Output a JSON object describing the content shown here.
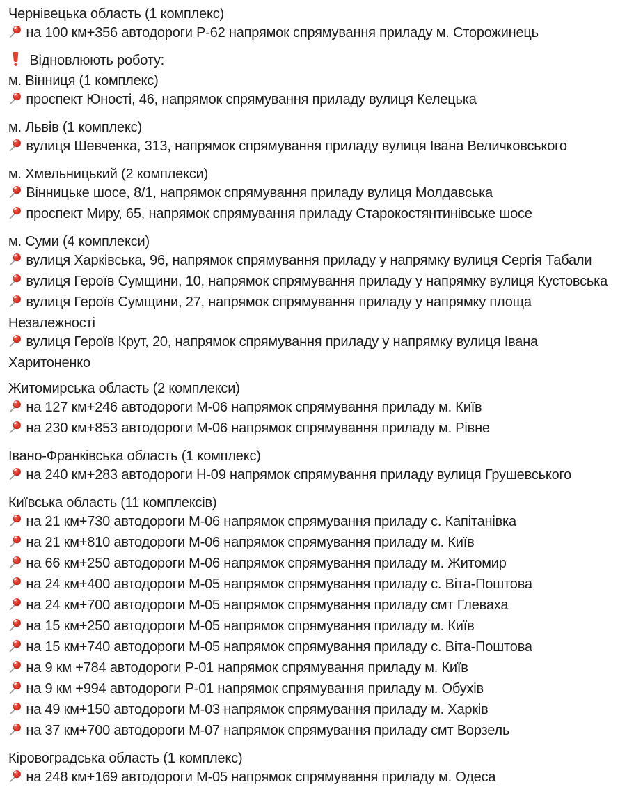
{
  "page": {
    "background": "#ffffff",
    "text_color": "#1f1f1f",
    "alert_red": "#e8402f",
    "pin_ball_red": "#d6332a",
    "pin_needle_gray": "#9e9e9e"
  },
  "icons": {
    "pin_glyph": "📌",
    "alert_glyph": "❗"
  },
  "blocks": [
    {
      "lines": [
        {
          "type": "heading",
          "text": "Чернівецька область (1 комплекс)"
        },
        {
          "type": "pin",
          "text": "на 100 км+356 автодороги Р-62 напрямок спрямування приладу м. Сторожинець"
        }
      ]
    },
    {
      "lines": [
        {
          "type": "alert",
          "text": "Відновлюють роботу:"
        },
        {
          "type": "heading",
          "text": "м. Вінниця (1 комплекс)"
        },
        {
          "type": "pin",
          "text": "проспект Юності, 46, напрямок спрямування приладу вулиця Келецька"
        }
      ]
    },
    {
      "lines": [
        {
          "type": "heading",
          "text": "м. Львів (1 комплекс)"
        },
        {
          "type": "pin",
          "text": "вулиця Шевченка, 313, напрямок спрямування приладу вулиця Івана Величковського"
        }
      ]
    },
    {
      "lines": [
        {
          "type": "heading",
          "text": "м. Хмельницький (2 комплекси)"
        },
        {
          "type": "pin",
          "text": "Вінницьке шосе, 8/1, напрямок спрямування приладу вулиця Молдавська"
        },
        {
          "type": "pin",
          "text": "проспект Миру, 65, напрямок спрямування приладу Старокостянтинівське шосе"
        }
      ]
    },
    {
      "lines": [
        {
          "type": "heading",
          "text": "м. Суми (4 комплекси)"
        },
        {
          "type": "pin",
          "text": "вулиця Харківська, 96, напрямок спрямування приладу у напрямку вулиця Сергія Табали"
        },
        {
          "type": "pin",
          "text": "вулиця Героїв Сумщини, 10, напрямок спрямування приладу у напрямку вулиця Кустовська"
        },
        {
          "type": "pin",
          "text": "вулиця Героїв Сумщини, 27, напрямок спрямування приладу у напрямку площа Незалежності"
        },
        {
          "type": "pin",
          "text": "вулиця Героїв Крут, 20, напрямок спрямування приладу у напрямку вулиця Івана Харитоненко"
        }
      ]
    },
    {
      "lines": [
        {
          "type": "heading",
          "text": "Житомирська область (2 комплекси)"
        },
        {
          "type": "pin",
          "text": "на 127 км+246 автодороги М-06 напрямок спрямування приладу м. Київ"
        },
        {
          "type": "pin",
          "text": "на 230 км+853 автодороги М-06 напрямок спрямування приладу м. Рівне"
        }
      ]
    },
    {
      "lines": [
        {
          "type": "heading",
          "text": "Івано-Франківська область (1 комплекс)"
        },
        {
          "type": "pin",
          "text": "на 240 км+283 автодороги Н-09 напрямок спрямування приладу вулиця Грушевського"
        }
      ]
    },
    {
      "lines": [
        {
          "type": "heading",
          "text": "Київська область (11 комплексів)"
        },
        {
          "type": "pin",
          "text": "на 21 км+730 автодороги М-06 напрямок спрямування приладу с. Капітанівка"
        },
        {
          "type": "pin",
          "text": "на 21 км+810 автодороги М-06 напрямок спрямування приладу м. Київ"
        },
        {
          "type": "pin",
          "text": "на 66 км+250 автодороги М-06 напрямок спрямування приладу м. Житомир"
        },
        {
          "type": "pin",
          "text": "на 24 км+400 автодороги М-05 напрямок спрямування приладу с. Віта-Поштова"
        },
        {
          "type": "pin",
          "text": "на 24 км+700 автодороги М-05 напрямок спрямування приладу смт Глеваха"
        },
        {
          "type": "pin",
          "text": "на 15 км+250 автодороги М-05 напрямок спрямування приладу м. Київ"
        },
        {
          "type": "pin",
          "text": "на 15 км+740 автодороги М-05 напрямок спрямування приладу с. Віта-Поштова"
        },
        {
          "type": "pin",
          "text": "на 9 км +784 автодороги Р-01 напрямок спрямування приладу м. Київ"
        },
        {
          "type": "pin",
          "text": "на 9 км +994 автодороги Р-01 напрямок спрямування приладу м. Обухів"
        },
        {
          "type": "pin",
          "text": "на 49 км+150 автодороги М-03 напрямок спрямування приладу м. Харків"
        },
        {
          "type": "pin",
          "text": "на 37 км+700 автодороги М-07 напрямок спрямування приладу смт Ворзель"
        }
      ]
    },
    {
      "lines": [
        {
          "type": "heading",
          "text": "Кіровоградська область (1 комплекс)"
        },
        {
          "type": "pin",
          "text": "на 248 км+169 автодороги М-05 напрямок спрямування приладу м. Одеса"
        }
      ]
    }
  ]
}
